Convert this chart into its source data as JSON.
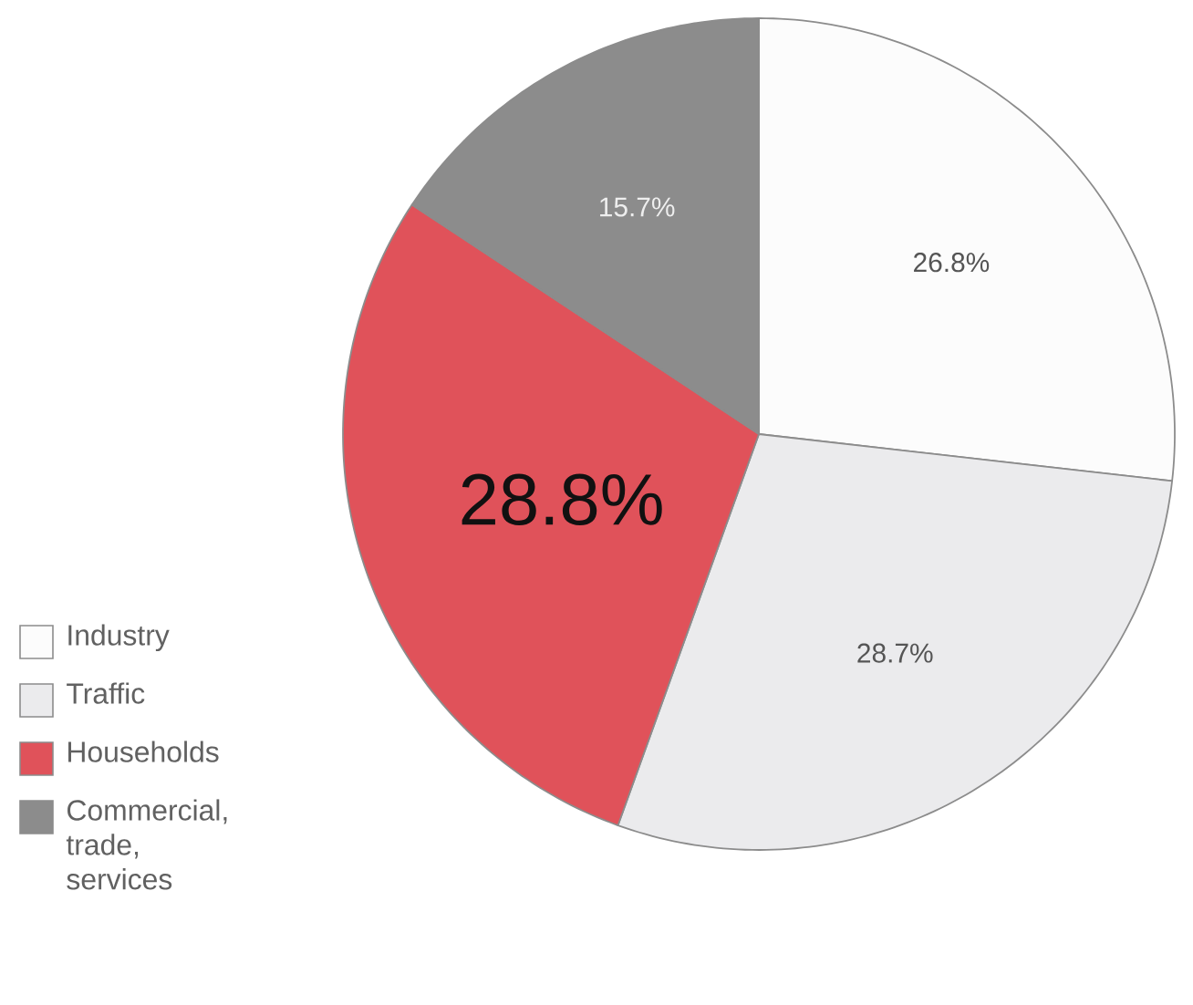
{
  "chart_data": {
    "type": "pie",
    "categories": [
      "Industry",
      "Traffic",
      "Households",
      "Commercial, trade, services"
    ],
    "values": [
      26.8,
      28.7,
      28.8,
      15.7
    ],
    "colors": [
      "#fcfcfc",
      "#ebebed",
      "#e0525a",
      "#8c8c8c"
    ],
    "value_labels": [
      "26.8%",
      "28.7%",
      "28.8%",
      "15.7%"
    ],
    "legend": "bottom left"
  }
}
